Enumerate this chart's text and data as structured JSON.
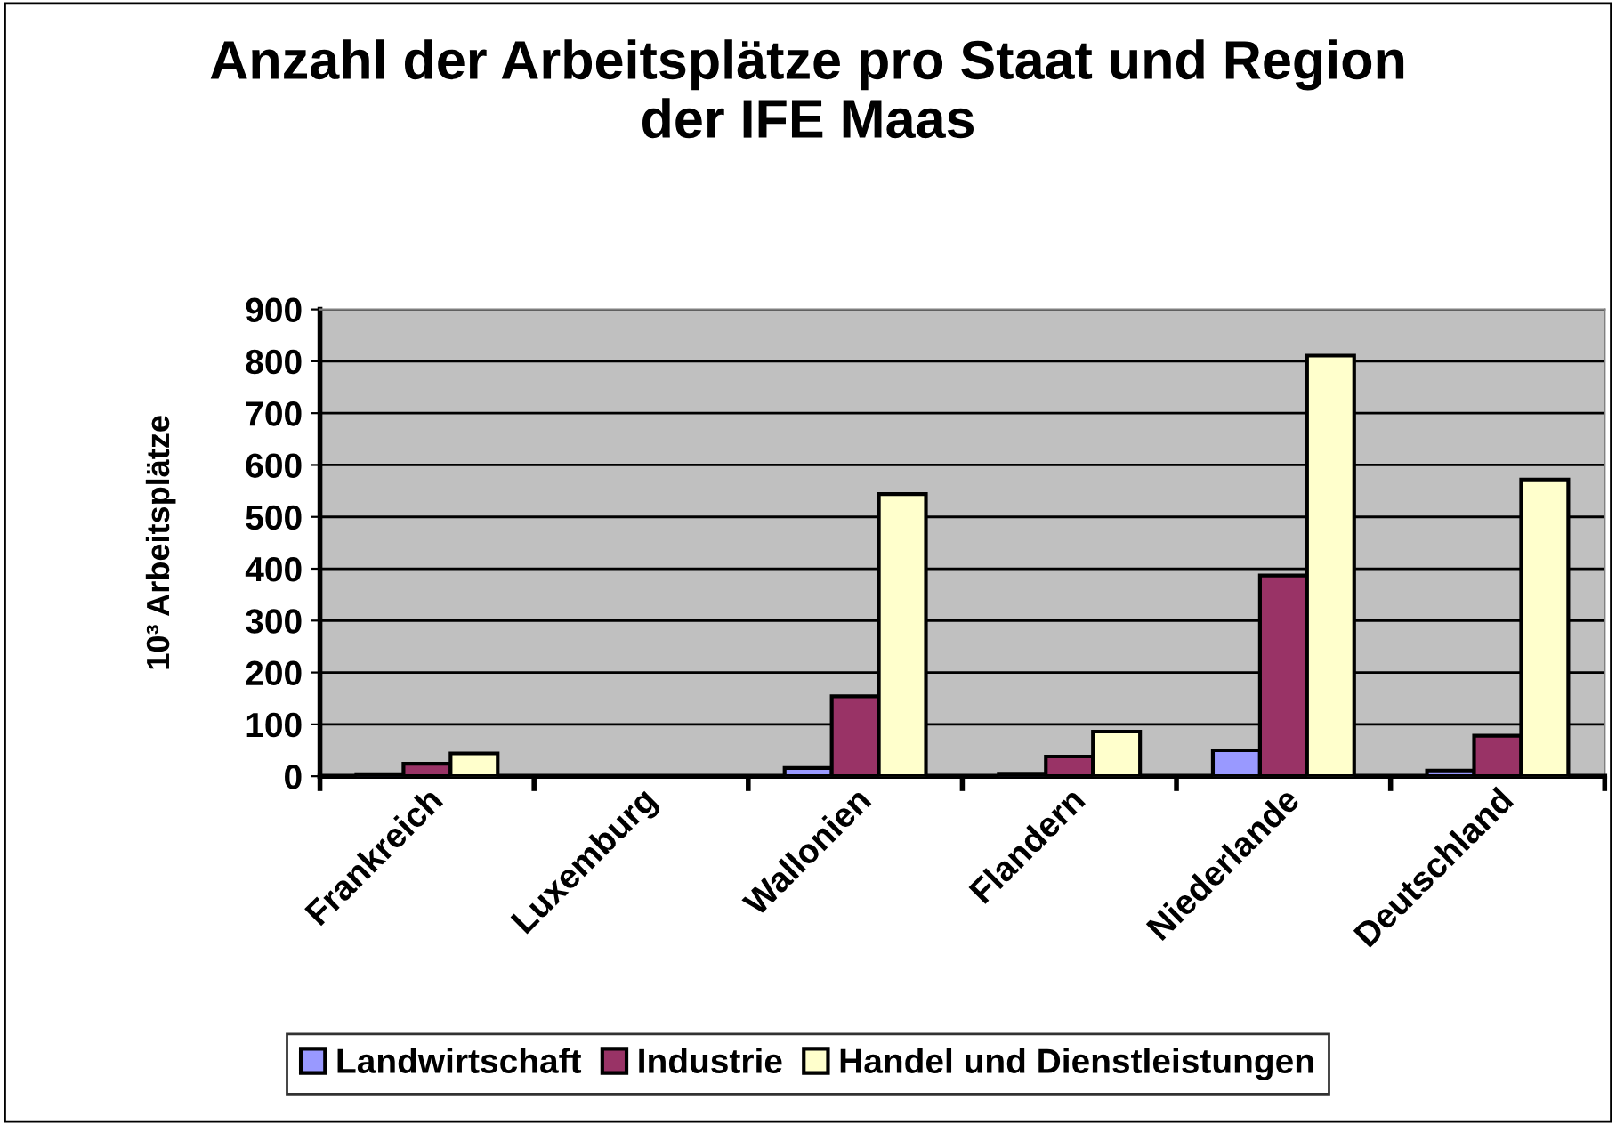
{
  "chart_data": {
    "type": "bar",
    "title": "Anzahl der Arbeitsplätze pro Staat und Region\nder IFE Maas",
    "ylabel": "10³ Arbeitsplätze",
    "categories": [
      "Frankreich",
      "Luxemburg",
      "Wallonien",
      "Flandern",
      "Niederlande",
      "Deutschland"
    ],
    "series": [
      {
        "name": "Landwirtschaft",
        "color": "#9999ff",
        "values": [
          4,
          null,
          16,
          5,
          50,
          11
        ]
      },
      {
        "name": "Industrie",
        "color": "#993366",
        "values": [
          24,
          null,
          154,
          38,
          387,
          78
        ]
      },
      {
        "name": "Handel und Dienstleistungen",
        "color": "#ffffcc",
        "values": [
          44,
          null,
          544,
          86,
          811,
          572
        ]
      }
    ],
    "ylim": [
      0,
      900
    ],
    "yticks": [
      0,
      100,
      200,
      300,
      400,
      500,
      600,
      700,
      800,
      900
    ],
    "grid": "y",
    "legend": "bottom"
  }
}
